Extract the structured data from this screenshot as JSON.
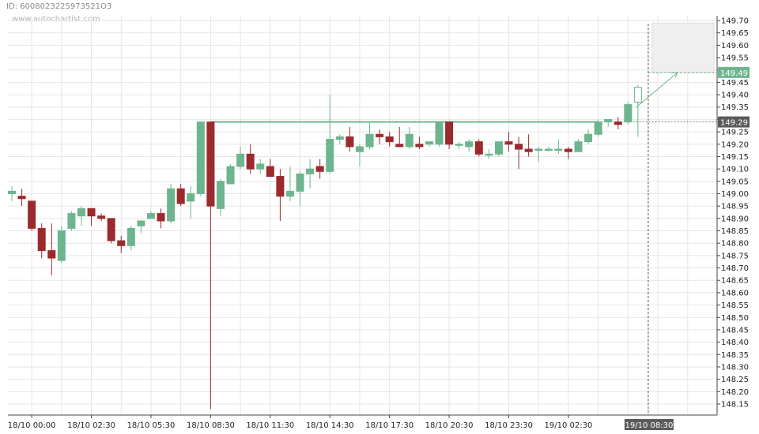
{
  "header": {
    "id_text": "ID: 6008023225973521O3",
    "watermark": "www.autochartist.com"
  },
  "chart_data": {
    "type": "candlestick",
    "y_ticks": [
      "149.70",
      "149.65",
      "149.60",
      "149.55",
      "149.50",
      "149.45",
      "149.40",
      "149.35",
      "149.30",
      "149.25",
      "149.20",
      "149.15",
      "149.10",
      "149.05",
      "149.00",
      "148.95",
      "148.90",
      "148.85",
      "148.80",
      "148.75",
      "148.70",
      "148.65",
      "148.60",
      "148.55",
      "148.50",
      "148.45",
      "148.40",
      "148.35",
      "148.30",
      "148.25",
      "148.20",
      "148.15"
    ],
    "ylim": [
      148.12,
      149.71
    ],
    "x_labels": [
      {
        "i": 2,
        "label": "18/10 00:00"
      },
      {
        "i": 8,
        "label": "18/10 02:30"
      },
      {
        "i": 14,
        "label": "18/10 05:30"
      },
      {
        "i": 20,
        "label": "18/10 08:30"
      },
      {
        "i": 26,
        "label": "18/10 11:30"
      },
      {
        "i": 32,
        "label": "18/10 14:30"
      },
      {
        "i": 38,
        "label": "18/10 17:30"
      },
      {
        "i": 44,
        "label": "18/10 20:30"
      },
      {
        "i": 50,
        "label": "18/10 23:30"
      },
      {
        "i": 56,
        "label": "19/10 02:30"
      }
    ],
    "current_x_label": "19/10 08:30",
    "candles": [
      {
        "o": 149.0,
        "h": 149.03,
        "l": 148.97,
        "c": 149.01
      },
      {
        "o": 148.99,
        "h": 149.02,
        "l": 148.95,
        "c": 148.98
      },
      {
        "o": 148.97,
        "h": 148.97,
        "l": 148.85,
        "c": 148.86
      },
      {
        "o": 148.86,
        "h": 148.88,
        "l": 148.74,
        "c": 148.77
      },
      {
        "o": 148.77,
        "h": 148.88,
        "l": 148.67,
        "c": 148.74
      },
      {
        "o": 148.73,
        "h": 148.87,
        "l": 148.72,
        "c": 148.85
      },
      {
        "o": 148.86,
        "h": 148.93,
        "l": 148.85,
        "c": 148.92
      },
      {
        "o": 148.91,
        "h": 148.95,
        "l": 148.87,
        "c": 148.94
      },
      {
        "o": 148.94,
        "h": 148.94,
        "l": 148.87,
        "c": 148.91
      },
      {
        "o": 148.91,
        "h": 148.92,
        "l": 148.89,
        "c": 148.9
      },
      {
        "o": 148.9,
        "h": 148.9,
        "l": 148.8,
        "c": 148.81
      },
      {
        "o": 148.81,
        "h": 148.83,
        "l": 148.76,
        "c": 148.79
      },
      {
        "o": 148.79,
        "h": 148.87,
        "l": 148.77,
        "c": 148.86
      },
      {
        "o": 148.87,
        "h": 148.89,
        "l": 148.84,
        "c": 148.89
      },
      {
        "o": 148.9,
        "h": 148.93,
        "l": 148.9,
        "c": 148.92
      },
      {
        "o": 148.92,
        "h": 148.94,
        "l": 148.86,
        "c": 148.89
      },
      {
        "o": 148.89,
        "h": 149.04,
        "l": 148.88,
        "c": 149.02
      },
      {
        "o": 149.02,
        "h": 149.04,
        "l": 148.95,
        "c": 148.96
      },
      {
        "o": 148.97,
        "h": 149.03,
        "l": 148.9,
        "c": 149.0
      },
      {
        "o": 149.0,
        "h": 149.29,
        "l": 148.99,
        "c": 149.29
      },
      {
        "o": 149.29,
        "h": 149.29,
        "l": 148.13,
        "c": 148.95
      },
      {
        "o": 148.94,
        "h": 149.06,
        "l": 148.91,
        "c": 149.05
      },
      {
        "o": 149.04,
        "h": 149.12,
        "l": 149.04,
        "c": 149.11
      },
      {
        "o": 149.11,
        "h": 149.19,
        "l": 149.1,
        "c": 149.16
      },
      {
        "o": 149.16,
        "h": 149.2,
        "l": 149.08,
        "c": 149.1
      },
      {
        "o": 149.1,
        "h": 149.14,
        "l": 149.08,
        "c": 149.12
      },
      {
        "o": 149.11,
        "h": 149.14,
        "l": 149.07,
        "c": 149.07
      },
      {
        "o": 149.07,
        "h": 149.1,
        "l": 148.89,
        "c": 148.99
      },
      {
        "o": 148.99,
        "h": 149.11,
        "l": 148.97,
        "c": 149.01
      },
      {
        "o": 149.01,
        "h": 149.09,
        "l": 148.95,
        "c": 149.08
      },
      {
        "o": 149.08,
        "h": 149.14,
        "l": 149.02,
        "c": 149.1
      },
      {
        "o": 149.11,
        "h": 149.14,
        "l": 149.06,
        "c": 149.09
      },
      {
        "o": 149.09,
        "h": 149.4,
        "l": 149.08,
        "c": 149.22
      },
      {
        "o": 149.22,
        "h": 149.24,
        "l": 149.2,
        "c": 149.23
      },
      {
        "o": 149.23,
        "h": 149.27,
        "l": 149.17,
        "c": 149.19
      },
      {
        "o": 149.17,
        "h": 149.2,
        "l": 149.11,
        "c": 149.19
      },
      {
        "o": 149.19,
        "h": 149.29,
        "l": 149.18,
        "c": 149.24
      },
      {
        "o": 149.24,
        "h": 149.26,
        "l": 149.2,
        "c": 149.23
      },
      {
        "o": 149.23,
        "h": 149.25,
        "l": 149.19,
        "c": 149.21
      },
      {
        "o": 149.2,
        "h": 149.27,
        "l": 149.19,
        "c": 149.19
      },
      {
        "o": 149.19,
        "h": 149.27,
        "l": 149.18,
        "c": 149.24
      },
      {
        "o": 149.2,
        "h": 149.23,
        "l": 149.18,
        "c": 149.19
      },
      {
        "o": 149.2,
        "h": 149.21,
        "l": 149.19,
        "c": 149.21
      },
      {
        "o": 149.2,
        "h": 149.29,
        "l": 149.19,
        "c": 149.29
      },
      {
        "o": 149.29,
        "h": 149.29,
        "l": 149.18,
        "c": 149.2
      },
      {
        "o": 149.2,
        "h": 149.21,
        "l": 149.18,
        "c": 149.2
      },
      {
        "o": 149.19,
        "h": 149.22,
        "l": 149.17,
        "c": 149.21
      },
      {
        "o": 149.21,
        "h": 149.22,
        "l": 149.15,
        "c": 149.16
      },
      {
        "o": 149.16,
        "h": 149.18,
        "l": 149.14,
        "c": 149.16
      },
      {
        "o": 149.16,
        "h": 149.21,
        "l": 149.15,
        "c": 149.21
      },
      {
        "o": 149.21,
        "h": 149.25,
        "l": 149.17,
        "c": 149.2
      },
      {
        "o": 149.2,
        "h": 149.23,
        "l": 149.1,
        "c": 149.18
      },
      {
        "o": 149.18,
        "h": 149.24,
        "l": 149.15,
        "c": 149.17
      },
      {
        "o": 149.18,
        "h": 149.19,
        "l": 149.13,
        "c": 149.18
      },
      {
        "o": 149.18,
        "h": 149.19,
        "l": 149.17,
        "c": 149.18
      },
      {
        "o": 149.18,
        "h": 149.22,
        "l": 149.16,
        "c": 149.18
      },
      {
        "o": 149.18,
        "h": 149.19,
        "l": 149.14,
        "c": 149.17
      },
      {
        "o": 149.17,
        "h": 149.22,
        "l": 149.17,
        "c": 149.21
      },
      {
        "o": 149.21,
        "h": 149.26,
        "l": 149.2,
        "c": 149.24
      },
      {
        "o": 149.24,
        "h": 149.3,
        "l": 149.23,
        "c": 149.29
      },
      {
        "o": 149.29,
        "h": 149.3,
        "l": 149.27,
        "c": 149.3
      },
      {
        "o": 149.29,
        "h": 149.31,
        "l": 149.26,
        "c": 149.28
      },
      {
        "o": 149.29,
        "h": 149.37,
        "l": 149.28,
        "c": 149.36
      },
      {
        "o": 149.37,
        "h": 149.44,
        "l": 149.23,
        "c": 149.43
      }
    ],
    "resistance_level": 149.29,
    "resistance_from_index": 20,
    "target_price": 149.49,
    "target_zone": [
      149.49,
      149.69
    ],
    "current_price_label": "149.29",
    "target_price_label": "149.49",
    "current_index": 63,
    "colors": {
      "up": "#6db58f",
      "down": "#9b2a2e",
      "level": "#6db58f",
      "grid": "#e6e6e6"
    }
  }
}
